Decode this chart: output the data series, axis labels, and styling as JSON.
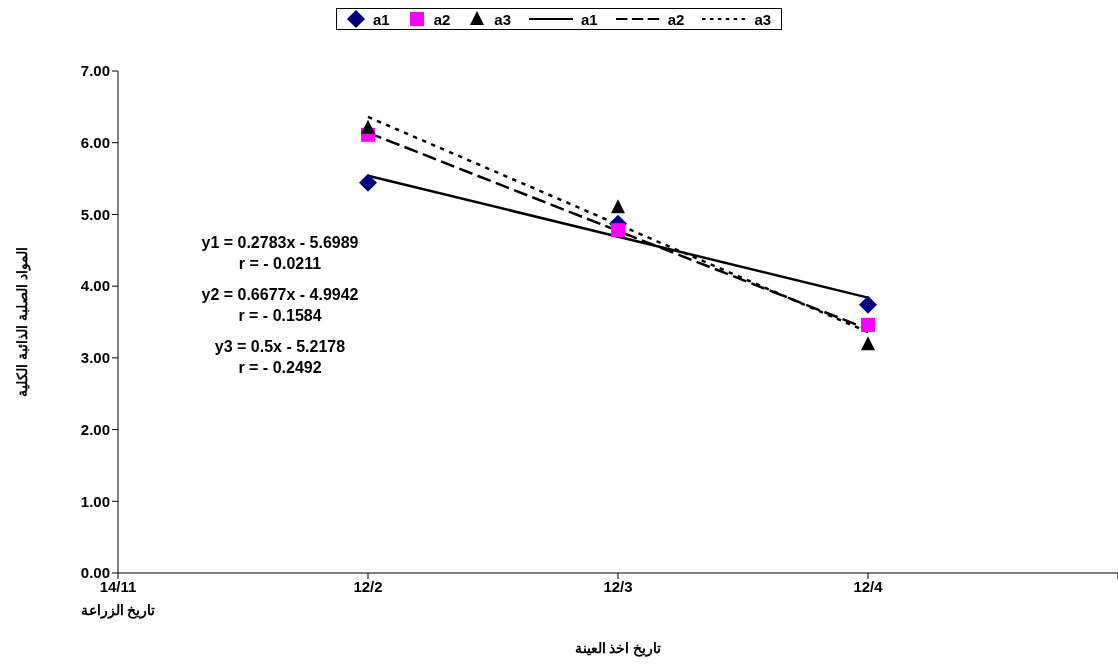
{
  "chart_data": {
    "type": "scatter",
    "xlabel": "تاريخ اخذ العينة",
    "ylabel": "المواد الصلبة الذائبة الكلية",
    "categories": [
      "14/11",
      "12/2",
      "12/3",
      "12/4",
      null
    ],
    "ylim": [
      0,
      7
    ],
    "yticks": [
      {
        "value": 0,
        "label": "0.00"
      },
      {
        "value": 1,
        "label": "1.00"
      },
      {
        "value": 2,
        "label": "2.00"
      },
      {
        "value": 3,
        "label": "3.00"
      },
      {
        "value": 4,
        "label": "4.00"
      },
      {
        "value": 5,
        "label": "5.00"
      },
      {
        "value": 6,
        "label": "6.00"
      },
      {
        "value": 7,
        "label": "7.00"
      }
    ],
    "grid": false,
    "legend": "top",
    "series": [
      {
        "name": "a1",
        "marker": "diamond",
        "color": "#000080",
        "values": [
          null,
          5.44,
          4.87,
          3.74,
          null
        ]
      },
      {
        "name": "a2",
        "marker": "square",
        "color": "#ff00ff",
        "values": [
          null,
          6.11,
          4.78,
          3.46,
          null
        ]
      },
      {
        "name": "a3",
        "marker": "triangle",
        "color": "#000000",
        "values": [
          null,
          6.21,
          5.1,
          3.19,
          null
        ]
      },
      {
        "name": "a1",
        "type": "line",
        "line_style": "solid",
        "color": "#000000",
        "values": [
          null,
          5.54,
          null,
          3.84,
          null
        ]
      },
      {
        "name": "a2",
        "type": "line",
        "line_style": "dashed",
        "color": "#000000",
        "values": [
          null,
          6.14,
          null,
          3.4,
          null
        ]
      },
      {
        "name": "a3",
        "type": "line",
        "line_style": "dotted",
        "color": "#000000",
        "values": [
          null,
          6.36,
          null,
          3.36,
          null
        ]
      }
    ],
    "annotations": [
      "تاريخ الزراعة",
      "y1 = 0.2783x - 5.6989\nr = - 0.0211",
      "y2 = 0.6677x - 4.9942\nr = - 0.1584",
      "y3 = 0.5x - 5.2178\nr = - 0.2492"
    ]
  }
}
